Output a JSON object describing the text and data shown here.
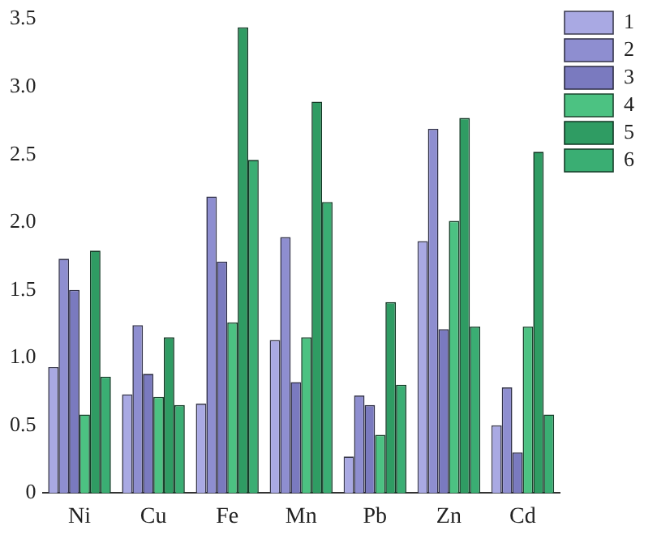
{
  "chart_data": {
    "type": "bar",
    "categories": [
      "Ni",
      "Cu",
      "Fe",
      "Mn",
      "Pb",
      "Zn",
      "Cd"
    ],
    "series": [
      {
        "name": "1",
        "color": "#a9a9e3",
        "values": [
          0.93,
          0.73,
          0.66,
          1.13,
          0.27,
          1.86,
          0.5
        ]
      },
      {
        "name": "2",
        "color": "#8e8ed0",
        "values": [
          1.73,
          1.24,
          2.19,
          1.89,
          0.72,
          2.69,
          0.78
        ]
      },
      {
        "name": "3",
        "color": "#7a7abf",
        "values": [
          1.5,
          0.88,
          1.71,
          0.82,
          0.65,
          1.21,
          0.3
        ]
      },
      {
        "name": "4",
        "color": "#4cc282",
        "values": [
          0.58,
          0.71,
          1.26,
          1.15,
          0.43,
          2.01,
          1.23
        ]
      },
      {
        "name": "5",
        "color": "#2f9c63",
        "values": [
          1.79,
          1.15,
          3.44,
          2.89,
          1.41,
          2.77,
          2.52
        ]
      },
      {
        "name": "6",
        "color": "#3aae73",
        "values": [
          0.86,
          0.65,
          2.46,
          2.15,
          0.8,
          1.23,
          0.58
        ]
      }
    ],
    "ylim": [
      0,
      3.5
    ],
    "yticks": [
      0,
      {
        "value": 0.5,
        "label": "0.5"
      },
      {
        "value": 1,
        "label": "1.0"
      },
      {
        "value": 1.5,
        "label": "1.5"
      },
      {
        "value": 2,
        "label": "2.0"
      },
      {
        "value": 2.5,
        "label": "2.5"
      },
      {
        "value": 3,
        "label": "3.0"
      },
      {
        "value": 3.5,
        "label": "3.5"
      }
    ],
    "grid": false,
    "legend": "top right"
  }
}
